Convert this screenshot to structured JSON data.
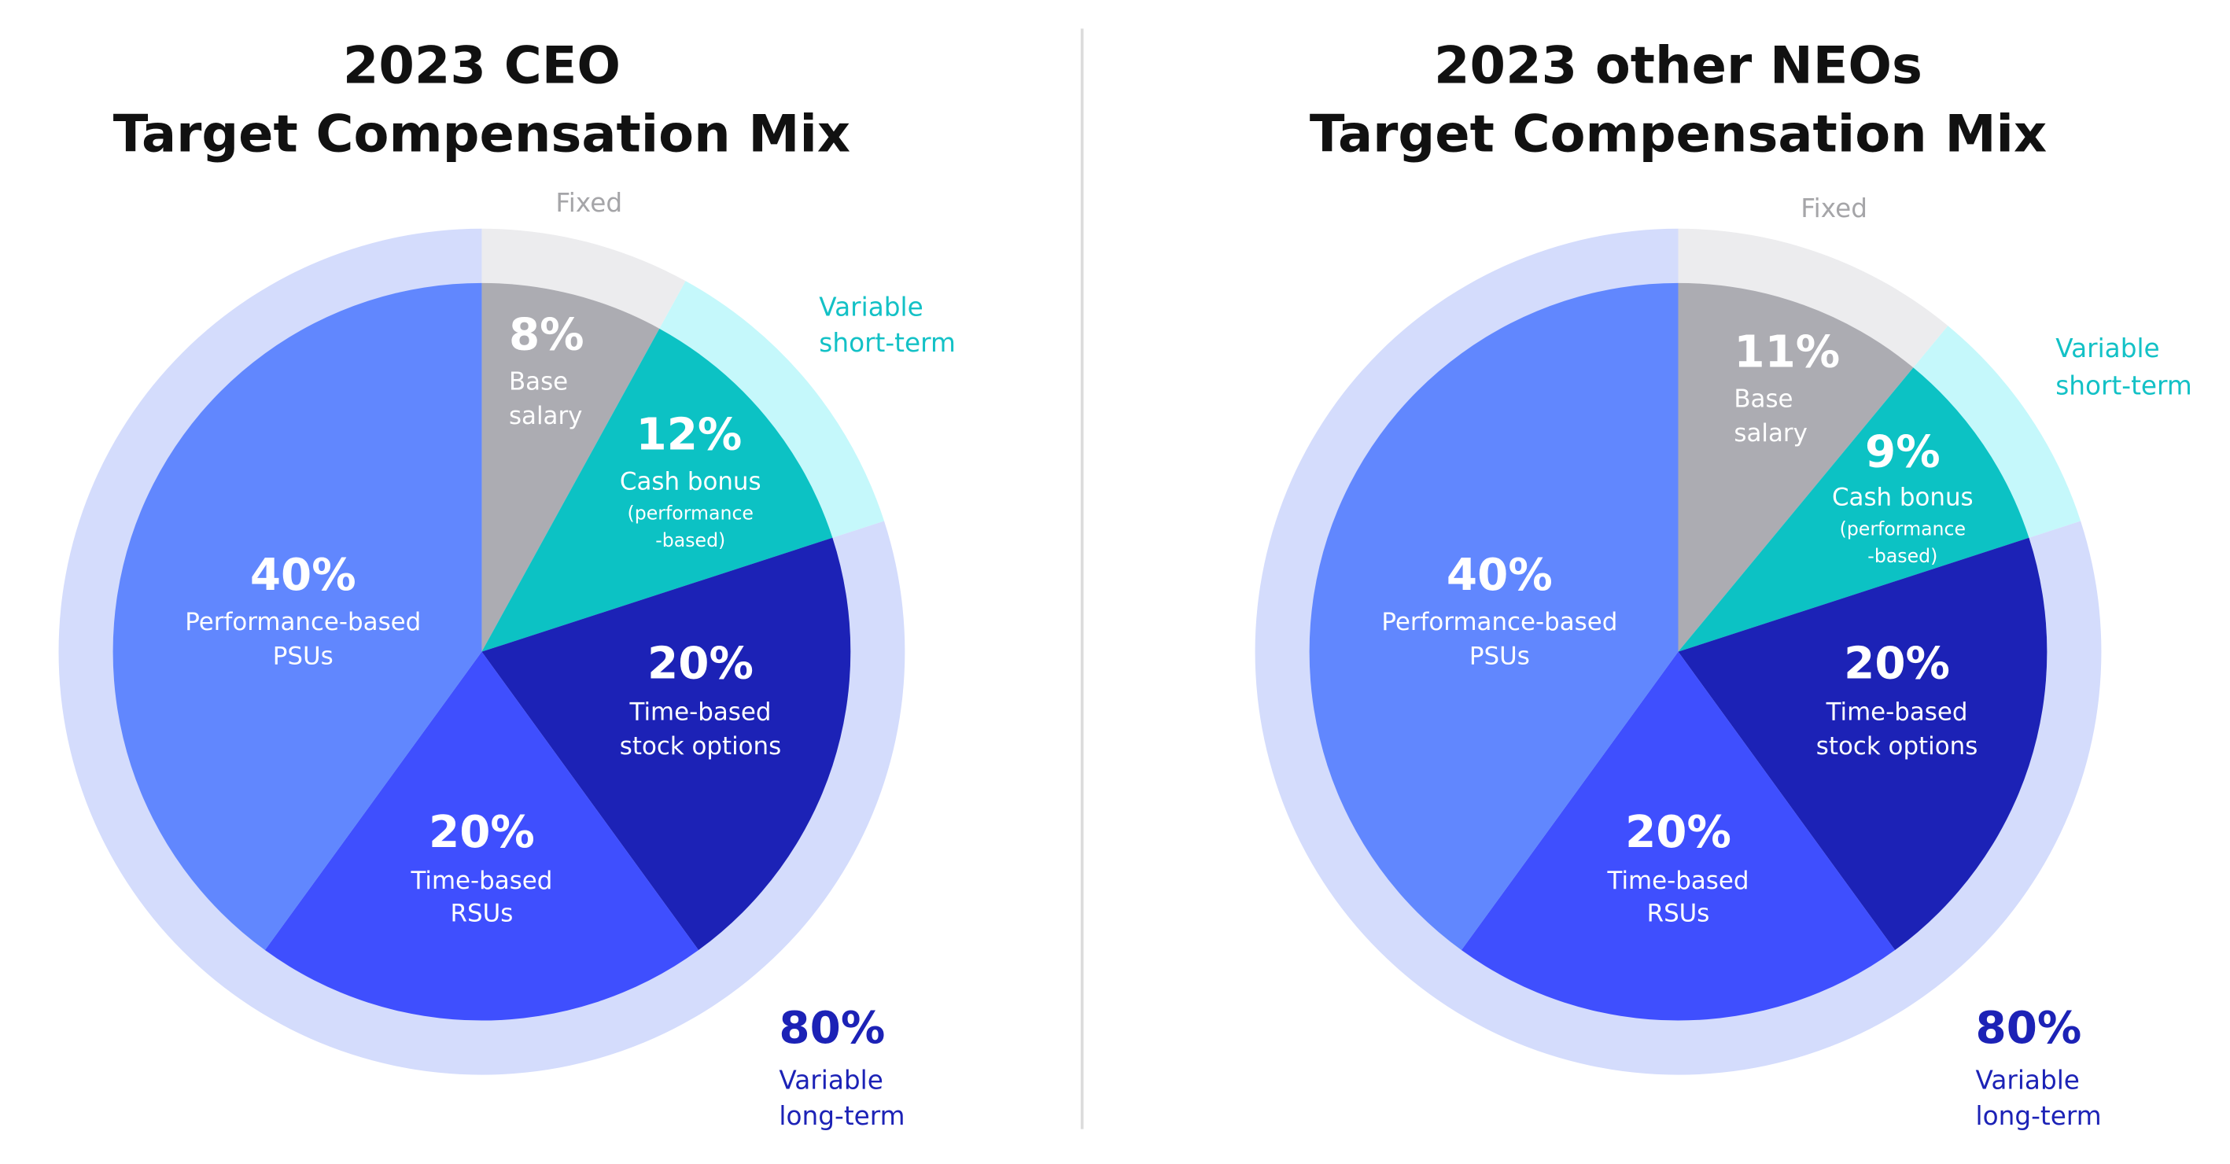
{
  "chart_data": [
    {
      "type": "pie",
      "title": [
        "2023 CEO",
        "Target Compensation Mix"
      ],
      "slices": [
        {
          "label": [
            "Base",
            "salary"
          ],
          "value": 8,
          "value_label": "8%",
          "color": "#acacb2"
        },
        {
          "label": [
            "Cash bonus"
          ],
          "sublabel": [
            "(performance",
            "-based)"
          ],
          "value": 12,
          "value_label": "12%",
          "color": "#0cc2c4"
        },
        {
          "label": [
            "Time-based",
            "stock options"
          ],
          "value": 20,
          "value_label": "20%",
          "color": "#1c22b6"
        },
        {
          "label": [
            "Time-based",
            "RSUs"
          ],
          "value": 20,
          "value_label": "20%",
          "color": "#3f4ffe"
        },
        {
          "label": [
            "Performance-based",
            "PSUs"
          ],
          "value": 40,
          "value_label": "40%",
          "color": "#6187fe"
        }
      ],
      "groups": [
        {
          "label": [
            "Fixed"
          ],
          "value": 8,
          "color": "#ececee",
          "text_color": "#a5a5a8"
        },
        {
          "label": [
            "Variable",
            "short-term"
          ],
          "value": 12,
          "color": "#c5f8fb",
          "text_color": "#13c1c6"
        },
        {
          "label": [
            "Variable",
            "long-term"
          ],
          "value": 80,
          "value_label": "80%",
          "color": "#d4dcfc",
          "text_color": "#1c22b6"
        }
      ]
    },
    {
      "type": "pie",
      "title": [
        "2023 other NEOs",
        "Target Compensation Mix"
      ],
      "slices": [
        {
          "label": [
            "Base",
            "salary"
          ],
          "value": 11,
          "value_label": "11%",
          "color": "#acacb2"
        },
        {
          "label": [
            "Cash bonus"
          ],
          "sublabel": [
            "(performance",
            "-based)"
          ],
          "value": 9,
          "value_label": "9%",
          "color": "#0cc2c4"
        },
        {
          "label": [
            "Time-based",
            "stock options"
          ],
          "value": 20,
          "value_label": "20%",
          "color": "#1c22b6"
        },
        {
          "label": [
            "Time-based",
            "RSUs"
          ],
          "value": 20,
          "value_label": "20%",
          "color": "#3f4ffe"
        },
        {
          "label": [
            "Performance-based",
            "PSUs"
          ],
          "value": 40,
          "value_label": "40%",
          "color": "#6187fe"
        }
      ],
      "groups": [
        {
          "label": [
            "Fixed"
          ],
          "value": 11,
          "color": "#ececee",
          "text_color": "#a5a5a8"
        },
        {
          "label": [
            "Variable",
            "short-term"
          ],
          "value": 9,
          "color": "#c5f8fb",
          "text_color": "#13c1c6"
        },
        {
          "label": [
            "Variable",
            "long-term"
          ],
          "value": 80,
          "value_label": "80%",
          "color": "#d4dcfc",
          "text_color": "#1c22b6"
        }
      ]
    }
  ]
}
